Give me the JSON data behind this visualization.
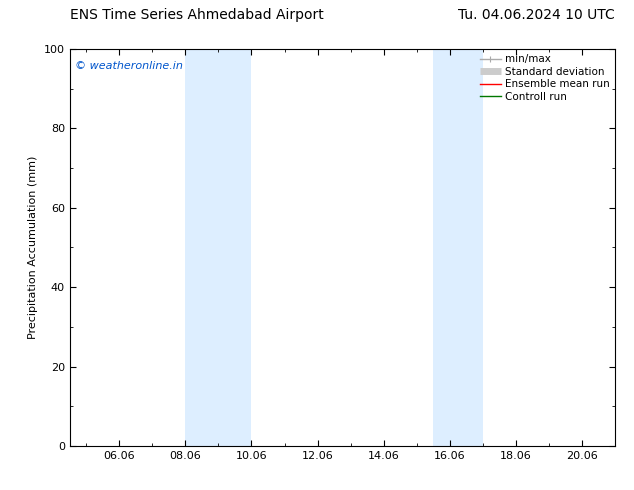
{
  "title_left": "ENS Time Series Ahmedabad Airport",
  "title_right": "Tu. 04.06.2024 10 UTC",
  "ylabel": "Precipitation Accumulation (mm)",
  "watermark": "© weatheronline.in",
  "watermark_color": "#0055cc",
  "ylim": [
    0,
    100
  ],
  "yticks": [
    0,
    20,
    40,
    60,
    80,
    100
  ],
  "xlim_start": 4.5,
  "xlim_end": 21.0,
  "xtick_labels": [
    "06.06",
    "08.06",
    "10.06",
    "12.06",
    "14.06",
    "16.06",
    "18.06",
    "20.06"
  ],
  "xtick_positions": [
    6,
    8,
    10,
    12,
    14,
    16,
    18,
    20
  ],
  "shaded_regions": [
    {
      "x_start": 8.0,
      "x_end": 10.0
    },
    {
      "x_start": 15.5,
      "x_end": 17.0
    }
  ],
  "shaded_color": "#ddeeff",
  "background_color": "#ffffff",
  "legend_items": [
    {
      "label": "min/max",
      "color": "#aaaaaa",
      "lw": 1.0
    },
    {
      "label": "Standard deviation",
      "color": "#cccccc",
      "lw": 5
    },
    {
      "label": "Ensemble mean run",
      "color": "#ff0000",
      "lw": 1.0
    },
    {
      "label": "Controll run",
      "color": "#007700",
      "lw": 1.0
    }
  ],
  "title_fontsize": 10,
  "label_fontsize": 8,
  "tick_fontsize": 8,
  "legend_fontsize": 7.5
}
